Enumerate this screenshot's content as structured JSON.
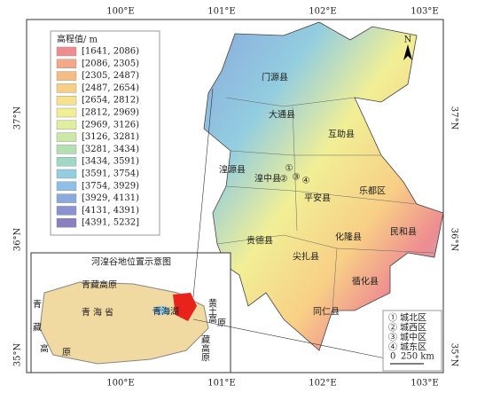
{
  "axes": {
    "top": [
      "100°E",
      "101°E",
      "102°E",
      "103°E"
    ],
    "bottom": [
      "100°E",
      "101°E",
      "102°E",
      "103°E"
    ],
    "left": [
      "37°N",
      "36°N",
      "35°N"
    ],
    "right": [
      "37°N",
      "36°N",
      "35°N"
    ]
  },
  "legend": {
    "title": "高程值/ m",
    "items": [
      {
        "label": "[1641, 2086)",
        "color": "#ee8c91"
      },
      {
        "label": "[2086, 2305)",
        "color": "#f5a78a"
      },
      {
        "label": "[2305, 2487)",
        "color": "#f7bc84"
      },
      {
        "label": "[2487, 2654)",
        "color": "#f8cf86"
      },
      {
        "label": "[2654, 2812)",
        "color": "#f6e18d"
      },
      {
        "label": "[2812, 2969)",
        "color": "#f1ef96"
      },
      {
        "label": "[2969, 3126)",
        "color": "#e0ef9f"
      },
      {
        "label": "[3126, 3281)",
        "color": "#cbe8a6"
      },
      {
        "label": "[3281, 3434)",
        "color": "#b4e0b3"
      },
      {
        "label": "[3434, 3591)",
        "color": "#9fd8c6"
      },
      {
        "label": "[3591, 3754)",
        "color": "#93cde0"
      },
      {
        "label": "[3754, 3929)",
        "color": "#8ebfe8"
      },
      {
        "label": "[3929, 4131)",
        "color": "#8aa9dd"
      },
      {
        "label": "[4131, 4391)",
        "color": "#8b92cf"
      },
      {
        "label": "[4391, 5232]",
        "color": "#8c7fc0"
      }
    ]
  },
  "counties": [
    "门源县",
    "大通县",
    "互助县",
    "湟源县",
    "湟中县",
    "平安县",
    "乐都区",
    "民和县",
    "贵德县",
    "化隆县",
    "尖扎县",
    "循化县",
    "同仁县"
  ],
  "north": "N",
  "inset": {
    "title": "河湟谷地位置示意图",
    "labels": [
      "青藏高原",
      "青",
      "藏",
      "高",
      "原",
      "青 海 省",
      "青海湖",
      "黄",
      "土",
      "高",
      "原",
      "藏",
      "高",
      "原"
    ]
  },
  "districts": {
    "markers": [
      "①",
      "②",
      "③",
      "④"
    ],
    "items": [
      "① 城北区",
      "② 城西区",
      "③ 城中区",
      "④ 城东区"
    ]
  },
  "scale": {
    "zero": "0",
    "label": "250 km"
  }
}
